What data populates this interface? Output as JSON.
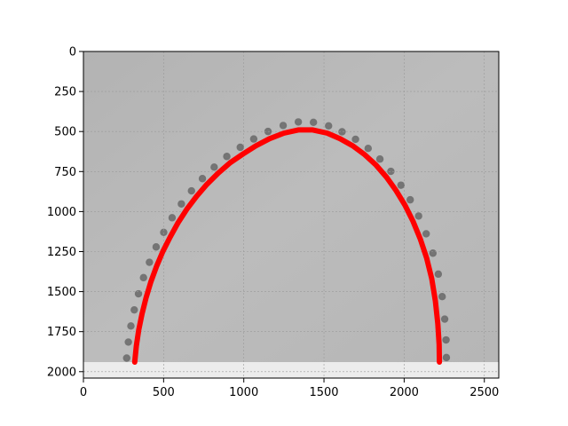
{
  "chart_data": {
    "type": "image-with-curve-overlay",
    "title": "",
    "xlabel": "",
    "ylabel": "",
    "xlim": [
      0,
      2590
    ],
    "ylim": [
      2040,
      0
    ],
    "y_axis_inverted": true,
    "x_ticks": [
      0,
      500,
      1000,
      1500,
      2000,
      2500
    ],
    "y_ticks": [
      0,
      250,
      500,
      750,
      1000,
      1250,
      1500,
      1750,
      2000
    ],
    "grid": true,
    "grid_style": "dotted",
    "background_image": {
      "description_kind": "grayscale microscopy image",
      "x_extent": [
        0,
        2590
      ],
      "y_extent": [
        0,
        1940
      ],
      "bottom_strip_y_extent": [
        1940,
        2040
      ]
    },
    "series": [
      {
        "color": "#ff0000",
        "style": "thick-line",
        "x": [
          320,
          330,
          345,
          365,
          390,
          420,
          455,
          495,
          540,
          590,
          645,
          705,
          770,
          840,
          915,
          995,
          1075,
          1160,
          1250,
          1340,
          1430,
          1520,
          1600,
          1680,
          1755,
          1825,
          1890,
          1950,
          2005,
          2055,
          2100,
          2140,
          2172,
          2195,
          2210,
          2218,
          2220
        ],
        "y": [
          1940,
          1840,
          1740,
          1640,
          1540,
          1440,
          1345,
          1250,
          1160,
          1070,
          985,
          905,
          830,
          760,
          695,
          640,
          590,
          545,
          510,
          490,
          490,
          510,
          545,
          590,
          645,
          710,
          785,
          870,
          960,
          1060,
          1170,
          1290,
          1420,
          1560,
          1700,
          1830,
          1940
        ]
      }
    ]
  }
}
